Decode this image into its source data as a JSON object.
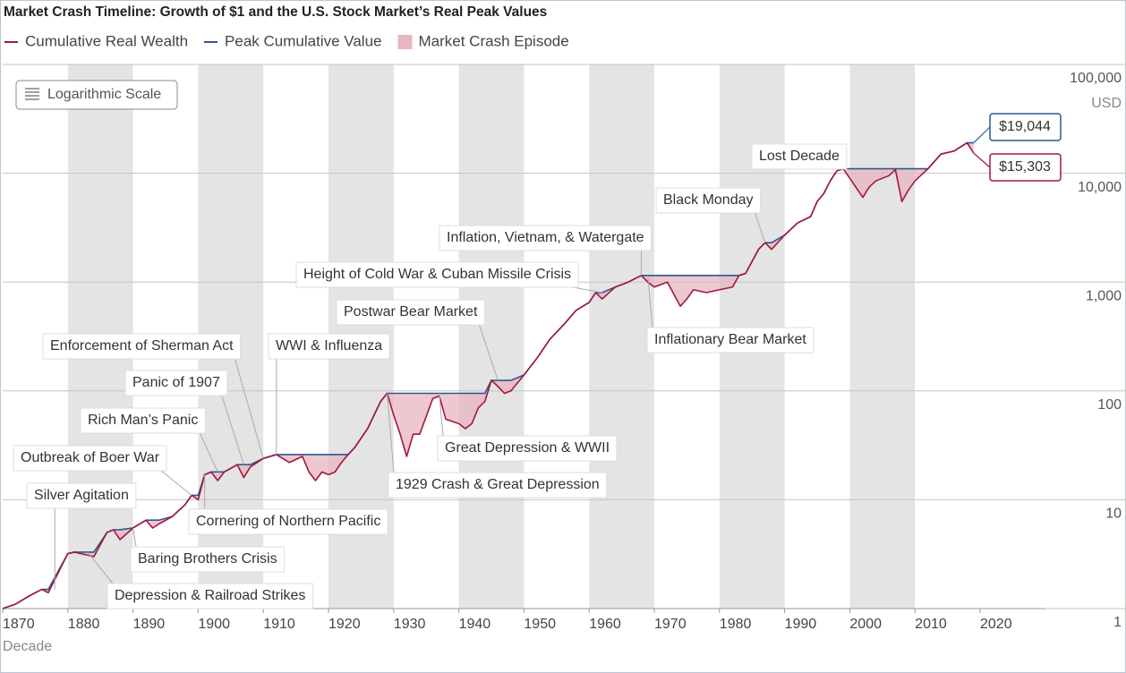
{
  "chart_data": {
    "type": "line",
    "title": "Market Crash Timeline: Growth of $1 and the U.S. Stock Market’s Real Peak Values",
    "x_label": "Decade",
    "y_unit": "USD",
    "log_button_label": "Logarithmic Scale",
    "log_scale": true,
    "grid": true,
    "legend_position": "top",
    "crash_legend": {
      "name": "Market Crash Episode",
      "color": "#e8b5c2"
    },
    "xlim": [
      1870,
      2030
    ],
    "xticks": [
      1870,
      1880,
      1890,
      1900,
      1910,
      1920,
      1930,
      1940,
      1950,
      1960,
      1970,
      1980,
      1990,
      2000,
      2010,
      2020
    ],
    "ylim": [
      1,
      100000
    ],
    "yticks": [
      {
        "value": 100000,
        "label": "100,000"
      },
      {
        "value": 10000,
        "label": "10,000"
      },
      {
        "value": 1000,
        "label": "1,000"
      },
      100,
      10,
      1
    ],
    "x": [
      1870,
      1872,
      1874,
      1876,
      1877,
      1880,
      1881,
      1883,
      1884,
      1886,
      1887,
      1888,
      1890,
      1892,
      1893,
      1894,
      1896,
      1898,
      1899,
      1900,
      1901,
      1902,
      1903,
      1904,
      1906,
      1907,
      1908,
      1910,
      1912,
      1914,
      1916,
      1917,
      1918,
      1919,
      1920,
      1921,
      1922,
      1923,
      1924,
      1926,
      1928,
      1929,
      1930,
      1931,
      1932,
      1933,
      1934,
      1936,
      1937,
      1938,
      1940,
      1941,
      1942,
      1943,
      1944,
      1945,
      1946,
      1947,
      1948,
      1950,
      1952,
      1954,
      1956,
      1958,
      1960,
      1961,
      1962,
      1964,
      1966,
      1968,
      1969,
      1970,
      1972,
      1974,
      1975,
      1976,
      1978,
      1980,
      1982,
      1983,
      1984,
      1986,
      1987,
      1988,
      1990,
      1992,
      1994,
      1995,
      1996,
      1997,
      1998,
      1999,
      2000,
      2002,
      2003,
      2004,
      2006,
      2007,
      2008,
      2009,
      2010,
      2012,
      2014,
      2016,
      2018,
      2019
    ],
    "series": [
      {
        "name": "Cumulative Real Wealth",
        "color": "#a3173c",
        "end_label": "$15,303",
        "values": [
          1,
          1.1,
          1.3,
          1.5,
          1.4,
          3.2,
          3.3,
          3.1,
          3.0,
          5,
          5.3,
          4.3,
          5.5,
          6.5,
          5.5,
          6,
          7,
          9,
          11,
          10,
          17,
          18,
          15,
          18,
          21,
          16,
          20,
          24,
          26,
          22,
          25,
          18,
          15,
          18,
          17,
          18,
          22,
          26,
          30,
          45,
          80,
          95,
          60,
          40,
          25,
          40,
          40,
          85,
          90,
          55,
          50,
          45,
          50,
          70,
          80,
          125,
          110,
          95,
          100,
          140,
          200,
          300,
          400,
          550,
          650,
          800,
          700,
          900,
          1000,
          1150,
          1000,
          900,
          1000,
          600,
          700,
          850,
          800,
          850,
          900,
          1150,
          1200,
          2000,
          2300,
          2000,
          2700,
          3500,
          4000,
          5500,
          6500,
          8500,
          10500,
          11000,
          9000,
          6000,
          7500,
          8500,
          9500,
          10800,
          5500,
          7000,
          8500,
          11000,
          15000,
          16000,
          19044,
          15303
        ]
      },
      {
        "name": "Peak Cumulative Value",
        "color": "#2b5797",
        "end_label": "$19,044",
        "values": [
          1,
          1.1,
          1.3,
          1.5,
          1.5,
          3.2,
          3.3,
          3.3,
          3.3,
          5,
          5.3,
          5.3,
          5.5,
          6.5,
          6.5,
          6.5,
          7,
          9,
          11,
          11,
          17,
          18,
          18,
          18,
          21,
          21,
          21,
          24,
          26,
          26,
          26,
          26,
          26,
          26,
          26,
          26,
          26,
          26,
          30,
          45,
          80,
          95,
          95,
          95,
          95,
          95,
          95,
          95,
          95,
          95,
          95,
          95,
          95,
          95,
          95,
          125,
          125,
          125,
          125,
          140,
          200,
          300,
          400,
          550,
          650,
          800,
          800,
          900,
          1000,
          1150,
          1150,
          1150,
          1150,
          1150,
          1150,
          1150,
          1150,
          1150,
          1150,
          1150,
          1200,
          2000,
          2300,
          2300,
          2700,
          3500,
          4000,
          5500,
          6500,
          8500,
          10500,
          11000,
          11000,
          11000,
          11000,
          11000,
          11000,
          11000,
          11000,
          11000,
          11000,
          11000,
          15000,
          16000,
          19044,
          19044
        ]
      }
    ],
    "annotations": [
      {
        "text": "Silver Agitation",
        "x": 1878
      },
      {
        "text": "Outbreak of Boer War",
        "x": 1899
      },
      {
        "text": "Rich Man’s Panic",
        "x": 1903
      },
      {
        "text": "Panic of 1907",
        "x": 1907
      },
      {
        "text": "Enforcement of Sherman Act",
        "x": 1910
      },
      {
        "text": "WWI & Influenza",
        "x": 1912
      },
      {
        "text": "Cornering of Northern Pacific",
        "x": 1901
      },
      {
        "text": "Baring Brothers Crisis",
        "x": 1890
      },
      {
        "text": "Depression & Railroad Strikes",
        "x": 1883
      },
      {
        "text": "1929 Crash & Great Depression",
        "x": 1929
      },
      {
        "text": "Great Depression & WWII",
        "x": 1937
      },
      {
        "text": "Postwar Bear Market",
        "x": 1946
      },
      {
        "text": "Height of Cold War & Cuban Missile Crisis",
        "x": 1962
      },
      {
        "text": "Inflation, Vietnam, & Watergate",
        "x": 1968
      },
      {
        "text": "Inflationary Bear Market",
        "x": 1969
      },
      {
        "text": "Black Monday",
        "x": 1987
      },
      {
        "text": "Lost Decade",
        "x": 1998
      }
    ]
  }
}
